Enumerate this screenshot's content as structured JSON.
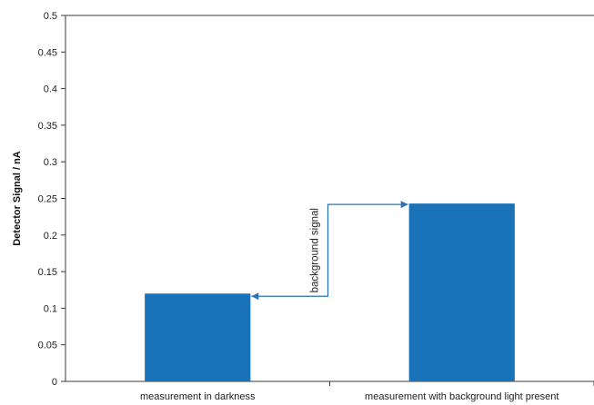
{
  "chart_data": {
    "type": "bar",
    "categories": [
      "measurement in darkness",
      "measurement with background light present"
    ],
    "values": [
      0.12,
      0.243
    ],
    "title": "",
    "xlabel": "",
    "ylabel": "Detector Signal / nA",
    "ylim": [
      0,
      0.5
    ],
    "yticks": [
      "0",
      "0.05",
      "0.1",
      "0.15",
      "0.2",
      "0.25",
      "0.3",
      "0.35",
      "0.4",
      "0.45",
      "0.5"
    ],
    "grid": false,
    "legend": "none",
    "bar_color": "#1a73b8",
    "annotation": {
      "text": "background signal",
      "arrow_color": "#2a74b6"
    }
  }
}
